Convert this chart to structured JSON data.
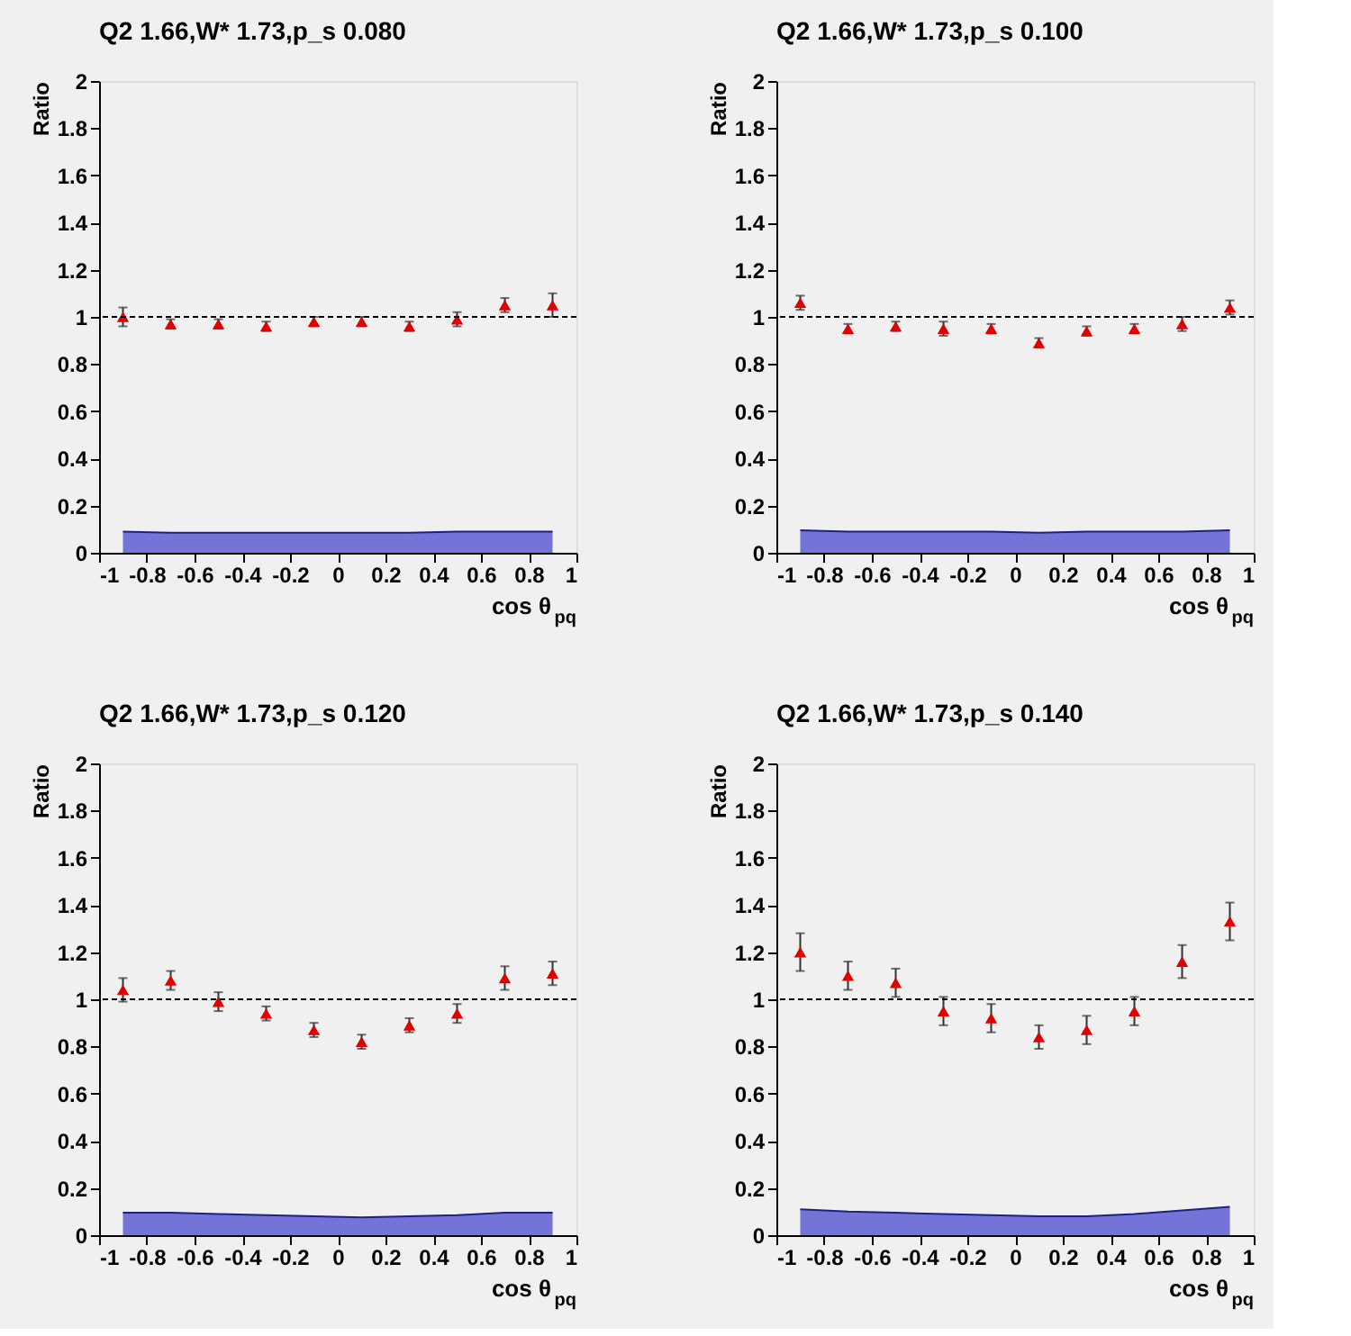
{
  "chart_data": [
    {
      "type": "scatter",
      "title": "Q2 1.66,W* 1.73,p_s 0.080",
      "xlabel": "cos θ$_{pq}$",
      "ylabel": "Ratio",
      "x": [
        -0.9,
        -0.7,
        -0.5,
        -0.3,
        -0.1,
        0.1,
        0.3,
        0.5,
        0.7,
        0.9
      ],
      "xlim": [
        -1,
        1
      ],
      "xticks": [
        -1,
        -0.8,
        -0.6,
        -0.4,
        -0.2,
        0,
        0.2,
        0.4,
        0.6,
        0.8,
        1
      ],
      "ylim": [
        0,
        2
      ],
      "yticks": [
        0,
        0.2,
        0.4,
        0.6,
        0.8,
        1,
        1.2,
        1.4,
        1.6,
        1.8,
        2
      ],
      "grid": false,
      "ref_lines": [
        {
          "axis": "y",
          "value": 1,
          "line_style": "dashed",
          "color": "#000000"
        }
      ],
      "series": [
        {
          "type": "area",
          "color": "#6b6bd6",
          "values": [
            0.09,
            0.085,
            0.085,
            0.085,
            0.085,
            0.085,
            0.085,
            0.09,
            0.09,
            0.09
          ]
        },
        {
          "type": "scatter",
          "color": "#e00000",
          "marker": "triangle",
          "values": [
            1.0,
            0.97,
            0.97,
            0.96,
            0.98,
            0.98,
            0.96,
            0.99,
            1.05,
            1.05
          ],
          "errors": [
            0.04,
            0.02,
            0.02,
            0.02,
            0.02,
            0.02,
            0.02,
            0.03,
            0.03,
            0.05
          ]
        }
      ]
    },
    {
      "type": "scatter",
      "title": "Q2 1.66,W* 1.73,p_s 0.100",
      "xlabel": "cos θ$_{pq}$",
      "ylabel": "Ratio",
      "x": [
        -0.9,
        -0.7,
        -0.5,
        -0.3,
        -0.1,
        0.1,
        0.3,
        0.5,
        0.7,
        0.9
      ],
      "xlim": [
        -1,
        1
      ],
      "xticks": [
        -1,
        -0.8,
        -0.6,
        -0.4,
        -0.2,
        0,
        0.2,
        0.4,
        0.6,
        0.8,
        1
      ],
      "ylim": [
        0,
        2
      ],
      "yticks": [
        0,
        0.2,
        0.4,
        0.6,
        0.8,
        1,
        1.2,
        1.4,
        1.6,
        1.8,
        2
      ],
      "grid": false,
      "ref_lines": [
        {
          "axis": "y",
          "value": 1,
          "line_style": "dashed",
          "color": "#000000"
        }
      ],
      "series": [
        {
          "type": "area",
          "color": "#6b6bd6",
          "values": [
            0.095,
            0.09,
            0.09,
            0.09,
            0.09,
            0.085,
            0.09,
            0.09,
            0.09,
            0.095
          ]
        },
        {
          "type": "scatter",
          "color": "#e00000",
          "marker": "triangle",
          "values": [
            1.06,
            0.95,
            0.96,
            0.95,
            0.95,
            0.89,
            0.94,
            0.95,
            0.97,
            1.04
          ],
          "errors": [
            0.03,
            0.02,
            0.02,
            0.03,
            0.02,
            0.02,
            0.02,
            0.02,
            0.03,
            0.03
          ]
        }
      ]
    },
    {
      "type": "scatter",
      "title": "Q2 1.66,W* 1.73,p_s 0.120",
      "xlabel": "cos θ$_{pq}$",
      "ylabel": "Ratio",
      "x": [
        -0.9,
        -0.7,
        -0.5,
        -0.3,
        -0.1,
        0.1,
        0.3,
        0.5,
        0.7,
        0.9
      ],
      "xlim": [
        -1,
        1
      ],
      "xticks": [
        -1,
        -0.8,
        -0.6,
        -0.4,
        -0.2,
        0,
        0.2,
        0.4,
        0.6,
        0.8,
        1
      ],
      "ylim": [
        0,
        2
      ],
      "yticks": [
        0,
        0.2,
        0.4,
        0.6,
        0.8,
        1,
        1.2,
        1.4,
        1.6,
        1.8,
        2
      ],
      "grid": false,
      "ref_lines": [
        {
          "axis": "y",
          "value": 1,
          "line_style": "dashed",
          "color": "#000000"
        }
      ],
      "series": [
        {
          "type": "area",
          "color": "#6b6bd6",
          "values": [
            0.095,
            0.095,
            0.09,
            0.085,
            0.08,
            0.075,
            0.08,
            0.085,
            0.095,
            0.095
          ]
        },
        {
          "type": "scatter",
          "color": "#e00000",
          "marker": "triangle",
          "values": [
            1.04,
            1.08,
            0.99,
            0.94,
            0.87,
            0.82,
            0.89,
            0.94,
            1.09,
            1.11
          ],
          "errors": [
            0.05,
            0.04,
            0.04,
            0.03,
            0.03,
            0.03,
            0.03,
            0.04,
            0.05,
            0.05
          ]
        }
      ]
    },
    {
      "type": "scatter",
      "title": "Q2 1.66,W* 1.73,p_s 0.140",
      "xlabel": "cos θ$_{pq}$",
      "ylabel": "Ratio",
      "x": [
        -0.9,
        -0.7,
        -0.5,
        -0.3,
        -0.1,
        0.1,
        0.3,
        0.5,
        0.7,
        0.9
      ],
      "xlim": [
        -1,
        1
      ],
      "xticks": [
        -1,
        -0.8,
        -0.6,
        -0.4,
        -0.2,
        0,
        0.2,
        0.4,
        0.6,
        0.8,
        1
      ],
      "ylim": [
        0,
        2
      ],
      "yticks": [
        0,
        0.2,
        0.4,
        0.6,
        0.8,
        1,
        1.2,
        1.4,
        1.6,
        1.8,
        2
      ],
      "grid": false,
      "ref_lines": [
        {
          "axis": "y",
          "value": 1,
          "line_style": "dashed",
          "color": "#000000"
        }
      ],
      "series": [
        {
          "type": "area",
          "color": "#6b6bd6",
          "values": [
            0.11,
            0.1,
            0.095,
            0.09,
            0.085,
            0.08,
            0.08,
            0.09,
            0.105,
            0.12
          ]
        },
        {
          "type": "scatter",
          "color": "#e00000",
          "marker": "triangle",
          "values": [
            1.2,
            1.1,
            1.07,
            0.95,
            0.92,
            0.84,
            0.87,
            0.95,
            1.16,
            1.33
          ],
          "errors": [
            0.08,
            0.06,
            0.06,
            0.06,
            0.06,
            0.05,
            0.06,
            0.06,
            0.07,
            0.08
          ]
        }
      ]
    }
  ]
}
